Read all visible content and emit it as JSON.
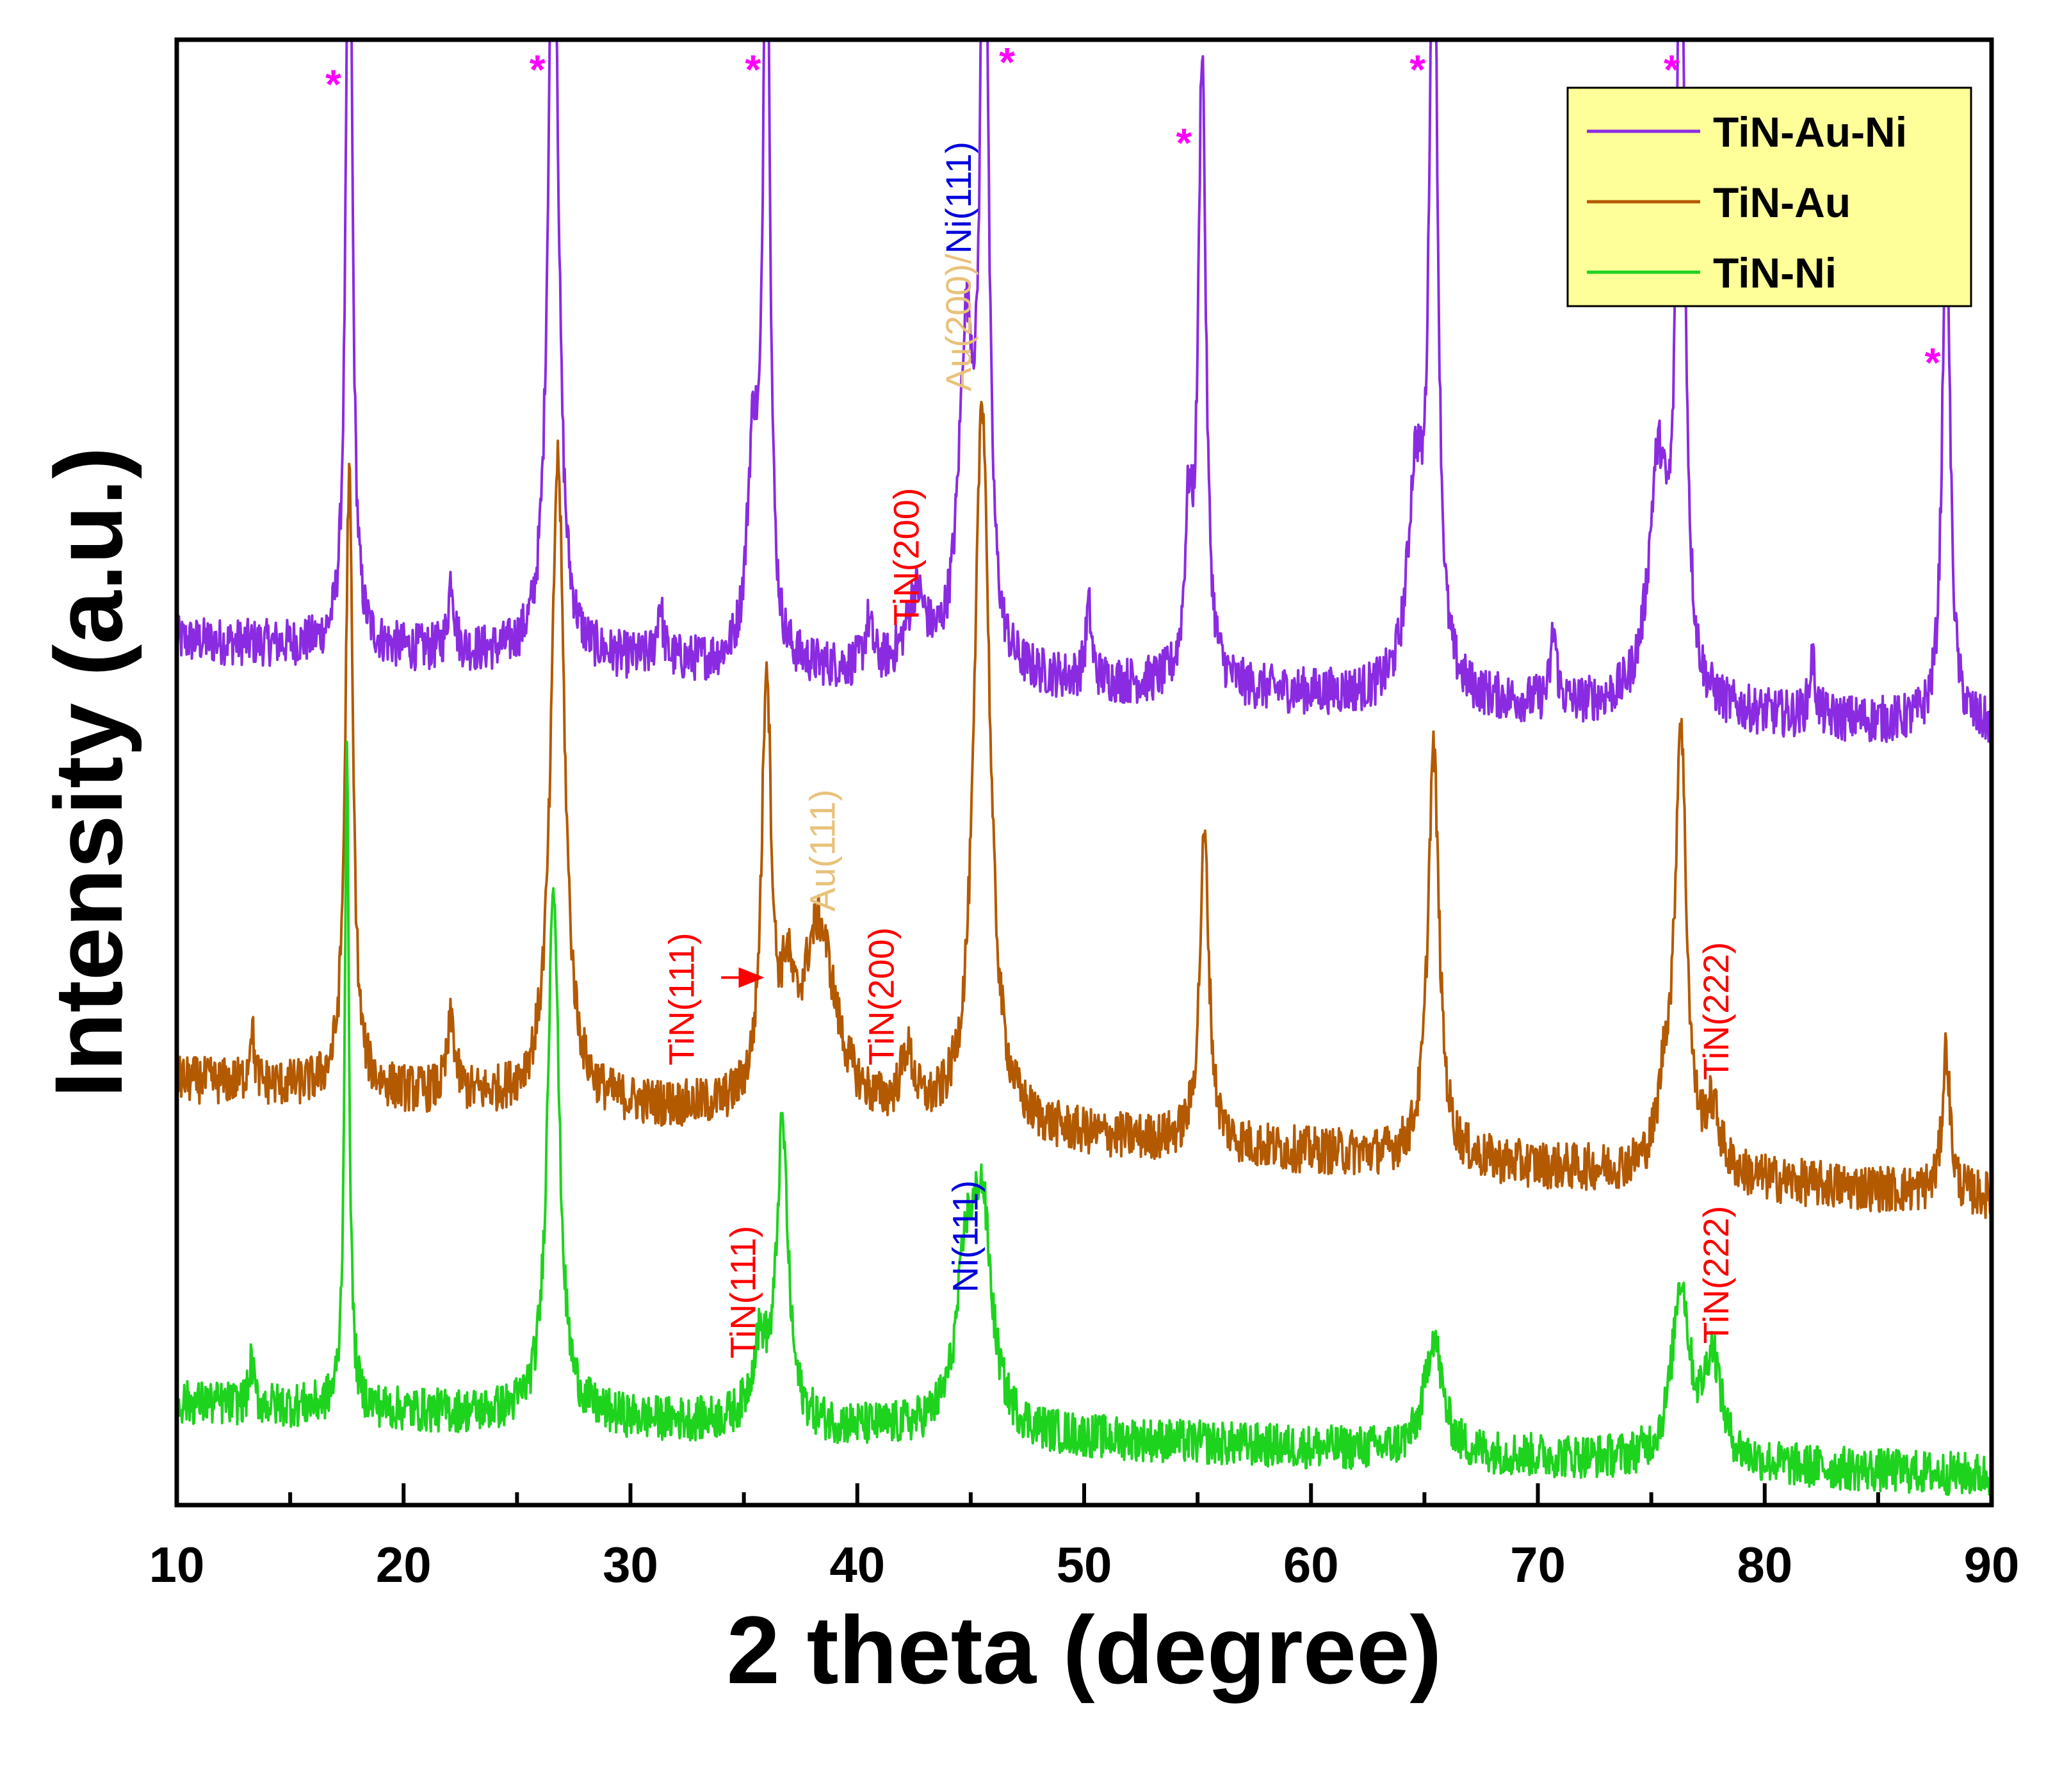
{
  "chart_data": {
    "type": "line",
    "title": "",
    "xlabel": "2 theta (degree)",
    "ylabel": "Intensity (a.u.)",
    "xlim": [
      10,
      90
    ],
    "ylim": [
      0,
      100
    ],
    "xticks": [
      10,
      20,
      30,
      40,
      50,
      60,
      70,
      80,
      90
    ],
    "grid": false,
    "legend_position": "top-right",
    "y_tick_labels_shown": false,
    "series": [
      {
        "name": "TiN-Au-Ni",
        "color": "#8a2be2",
        "baseline": 59,
        "baseline_end": 53,
        "noise": 1.6,
        "peaks": [
          {
            "x": 17.6,
            "h": 60,
            "w": 0.16
          },
          {
            "x": 22.1,
            "h": 5,
            "w": 0.15
          },
          {
            "x": 26.6,
            "h": 60,
            "w": 0.25
          },
          {
            "x": 31.3,
            "h": 4,
            "w": 0.15
          },
          {
            "x": 35.4,
            "h": 14,
            "w": 0.3
          },
          {
            "x": 36.0,
            "h": 60,
            "w": 0.16
          },
          {
            "x": 40.5,
            "h": 3,
            "w": 0.2
          },
          {
            "x": 42.6,
            "h": 5,
            "w": 0.5
          },
          {
            "x": 44.8,
            "h": 22,
            "w": 0.4
          },
          {
            "x": 45.6,
            "h": 60,
            "w": 0.2
          },
          {
            "x": 50.2,
            "h": 5,
            "w": 0.15
          },
          {
            "x": 54.6,
            "h": 10,
            "w": 0.2
          },
          {
            "x": 55.2,
            "h": 43,
            "w": 0.2
          },
          {
            "x": 64.6,
            "h": 14,
            "w": 0.4
          },
          {
            "x": 65.4,
            "h": 60,
            "w": 0.2
          },
          {
            "x": 70.7,
            "h": 5,
            "w": 0.15
          },
          {
            "x": 75.3,
            "h": 16,
            "w": 0.5
          },
          {
            "x": 76.3,
            "h": 60,
            "w": 0.2
          },
          {
            "x": 82.1,
            "h": 4,
            "w": 0.15
          },
          {
            "x": 88.0,
            "h": 37,
            "w": 0.2
          }
        ]
      },
      {
        "name": "TiN-Au",
        "color": "#b35900",
        "baseline": 29,
        "baseline_end": 21,
        "noise": 1.6,
        "peaks": [
          {
            "x": 13.3,
            "h": 4,
            "w": 0.12
          },
          {
            "x": 17.6,
            "h": 42,
            "w": 0.2
          },
          {
            "x": 22.1,
            "h": 5,
            "w": 0.2
          },
          {
            "x": 26.8,
            "h": 44,
            "w": 0.35
          },
          {
            "x": 36.0,
            "h": 29,
            "w": 0.25
          },
          {
            "x": 36.9,
            "h": 6,
            "w": 0.3
          },
          {
            "x": 38.3,
            "h": 13,
            "w": 0.9
          },
          {
            "x": 42.2,
            "h": 4,
            "w": 0.35
          },
          {
            "x": 45.5,
            "h": 50,
            "w": 0.4
          },
          {
            "x": 55.3,
            "h": 21,
            "w": 0.25
          },
          {
            "x": 65.4,
            "h": 28,
            "w": 0.3
          },
          {
            "x": 75.6,
            "h": 5,
            "w": 0.35
          },
          {
            "x": 76.3,
            "h": 30,
            "w": 0.3
          },
          {
            "x": 77.7,
            "h": 4,
            "w": 0.4
          },
          {
            "x": 88.0,
            "h": 10,
            "w": 0.2
          }
        ]
      },
      {
        "name": "TiN-Ni",
        "color": "#1ed31e",
        "baseline": 7,
        "baseline_end": 2,
        "noise": 1.5,
        "peaks": [
          {
            "x": 13.3,
            "h": 3,
            "w": 0.12
          },
          {
            "x": 17.5,
            "h": 44,
            "w": 0.12
          },
          {
            "x": 26.6,
            "h": 37,
            "w": 0.3
          },
          {
            "x": 35.7,
            "h": 5,
            "w": 0.4
          },
          {
            "x": 36.7,
            "h": 20,
            "w": 0.3
          },
          {
            "x": 44.8,
            "h": 10,
            "w": 0.5
          },
          {
            "x": 45.5,
            "h": 14,
            "w": 0.5
          },
          {
            "x": 65.4,
            "h": 8,
            "w": 0.45
          },
          {
            "x": 76.3,
            "h": 12,
            "w": 0.45
          },
          {
            "x": 77.7,
            "h": 7,
            "w": 0.45
          }
        ]
      }
    ],
    "annotations": [
      {
        "text": "*",
        "x": 16.9,
        "y": 96,
        "color": "#ff00ff",
        "kind": "star"
      },
      {
        "text": "*",
        "x": 25.9,
        "y": 97,
        "color": "#ff00ff",
        "kind": "star"
      },
      {
        "text": "*",
        "x": 35.4,
        "y": 97,
        "color": "#ff00ff",
        "kind": "star"
      },
      {
        "text": "*",
        "x": 46.6,
        "y": 97.5,
        "color": "#ff00ff",
        "kind": "star"
      },
      {
        "text": "*",
        "x": 54.4,
        "y": 92,
        "color": "#ff00ff",
        "kind": "star"
      },
      {
        "text": "*",
        "x": 64.7,
        "y": 97,
        "color": "#ff00ff",
        "kind": "star"
      },
      {
        "text": "*",
        "x": 75.9,
        "y": 97,
        "color": "#ff00ff",
        "kind": "star"
      },
      {
        "text": "*",
        "x": 87.4,
        "y": 77,
        "color": "#ff00ff",
        "kind": "star"
      },
      {
        "text": "TiN(200)",
        "x": 42.7,
        "y": 60,
        "color": "#ff0000",
        "kind": "vertical"
      },
      {
        "text": "TiN(111)",
        "x": 32.8,
        "y": 30,
        "color": "#ff0000",
        "kind": "vertical"
      },
      {
        "text": "Au(111)",
        "x": 39.0,
        "y": 40.5,
        "color": "#e8c27a",
        "kind": "vertical"
      },
      {
        "text": "TiN(200)",
        "x": 41.6,
        "y": 30,
        "color": "#ff0000",
        "kind": "vertical"
      },
      {
        "text": "TiN(222)",
        "x": 78.4,
        "y": 29,
        "color": "#ff0000",
        "kind": "vertical"
      },
      {
        "text": "TiN(111)",
        "x": 35.5,
        "y": 10,
        "color": "#ff0000",
        "kind": "vertical"
      },
      {
        "text": "Ni(111)",
        "x": 45.3,
        "y": 14.5,
        "color": "#0000dd",
        "kind": "vertical"
      },
      {
        "text": "TiN(222)",
        "x": 78.4,
        "y": 11,
        "color": "#ff0000",
        "kind": "vertical"
      }
    ],
    "stacked_label": {
      "parts": [
        {
          "text": "Au(200)",
          "color": "#e8c27a"
        },
        {
          "text": "/",
          "color": "#e8c27a"
        },
        {
          "text": "Ni(111)",
          "color": "#0000dd"
        }
      ],
      "x": 45.0,
      "y": 76
    },
    "arrow": {
      "from_x": 34.0,
      "to_x": 35.9,
      "y": 36,
      "color": "#ff0000"
    }
  }
}
